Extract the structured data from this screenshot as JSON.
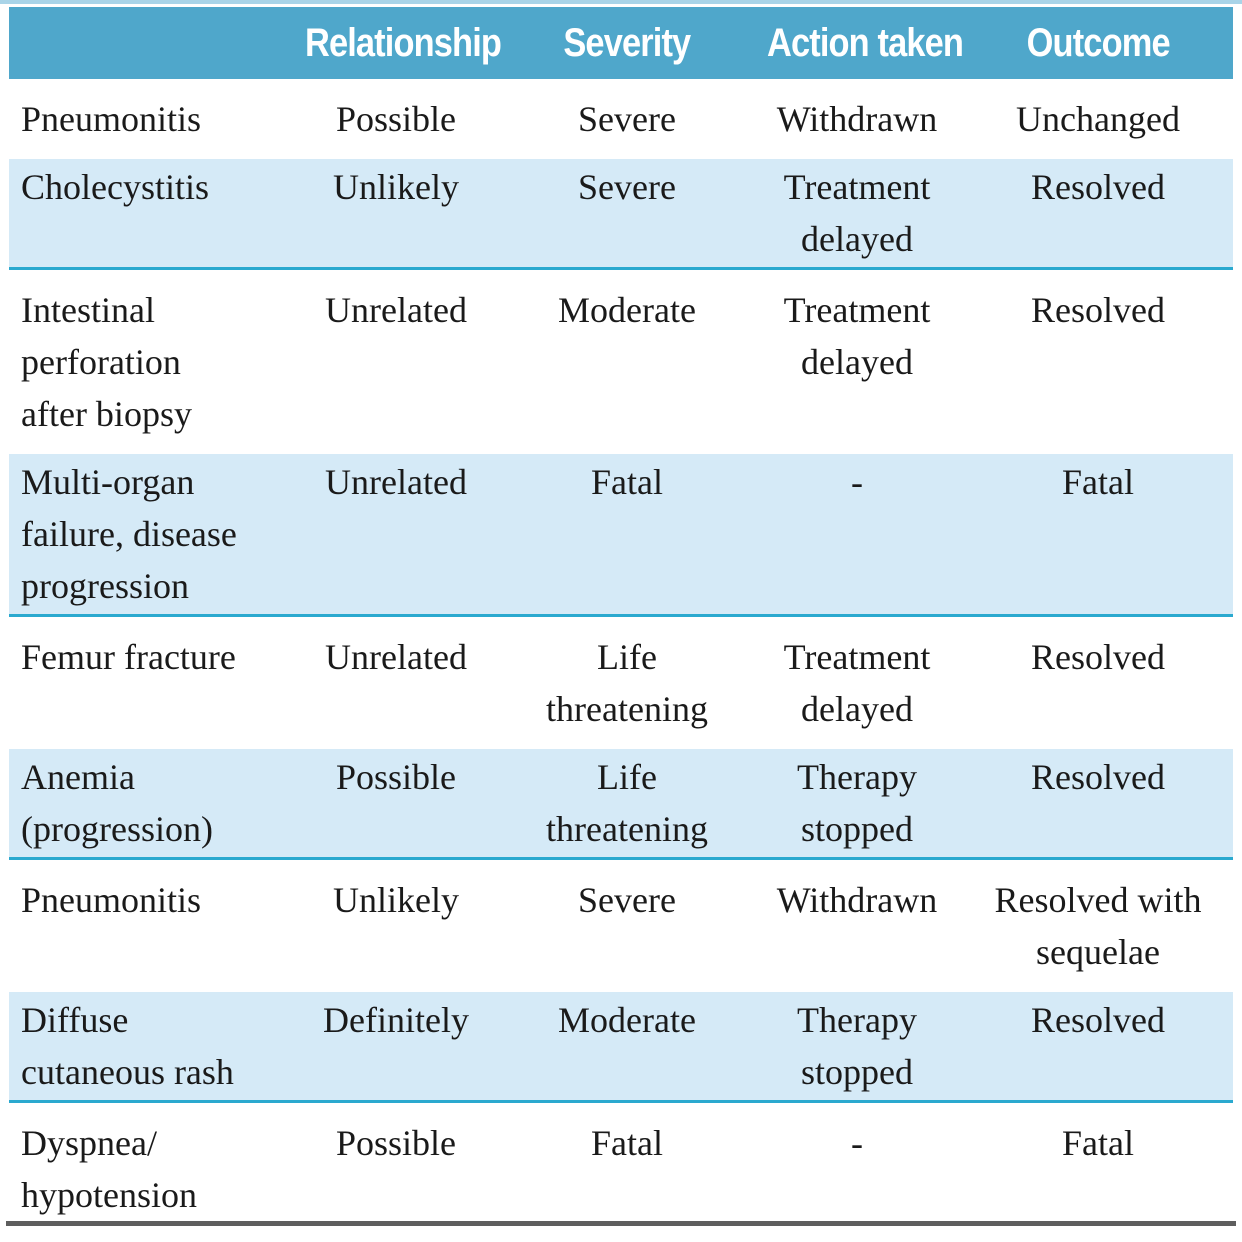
{
  "colors": {
    "header_bg": "#4fa7cb",
    "header_text": "#ffffff",
    "shaded_row_bg": "#d5eaf7",
    "row_separator_cyan": "#2aa9cf",
    "top_strip": "#a9d4e8",
    "bottom_rule": "#5e5e5e",
    "body_text": "#1a1a1a"
  },
  "table": {
    "columns": [
      "",
      "Relationship",
      "Severity",
      "Action taken",
      "Outcome"
    ],
    "rows": [
      {
        "event": "Pneumonitis",
        "relationship": "Possible",
        "severity": "Severe",
        "action": "Withdrawn",
        "outcome": "Unchanged"
      },
      {
        "event": "Cholecystitis",
        "relationship": "Unlikely",
        "severity": "Severe",
        "action": "Treatment\ndelayed",
        "outcome": "Resolved"
      },
      {
        "event": "Intestinal\nperforation\nafter biopsy",
        "relationship": "Unrelated",
        "severity": "Moderate",
        "action": "Treatment\ndelayed",
        "outcome": "Resolved"
      },
      {
        "event": "Multi-organ\nfailure, disease\nprogression",
        "relationship": "Unrelated",
        "severity": "Fatal",
        "action": "-",
        "outcome": "Fatal"
      },
      {
        "event": "Femur fracture",
        "relationship": "Unrelated",
        "severity": "Life\nthreatening",
        "action": "Treatment\ndelayed",
        "outcome": "Resolved"
      },
      {
        "event": "Anemia\n(progression)",
        "relationship": "Possible",
        "severity": "Life\nthreatening",
        "action": "Therapy\nstopped",
        "outcome": "Resolved"
      },
      {
        "event": "Pneumonitis",
        "relationship": "Unlikely",
        "severity": "Severe",
        "action": "Withdrawn",
        "outcome": "Resolved with\nsequelae"
      },
      {
        "event": "Diffuse\ncutaneous rash",
        "relationship": "Definitely",
        "severity": "Moderate",
        "action": "Therapy\nstopped",
        "outcome": "Resolved"
      },
      {
        "event": "Dyspnea/\nhypotension",
        "relationship": "Possible",
        "severity": "Fatal",
        "action": "-",
        "outcome": "Fatal"
      }
    ]
  }
}
